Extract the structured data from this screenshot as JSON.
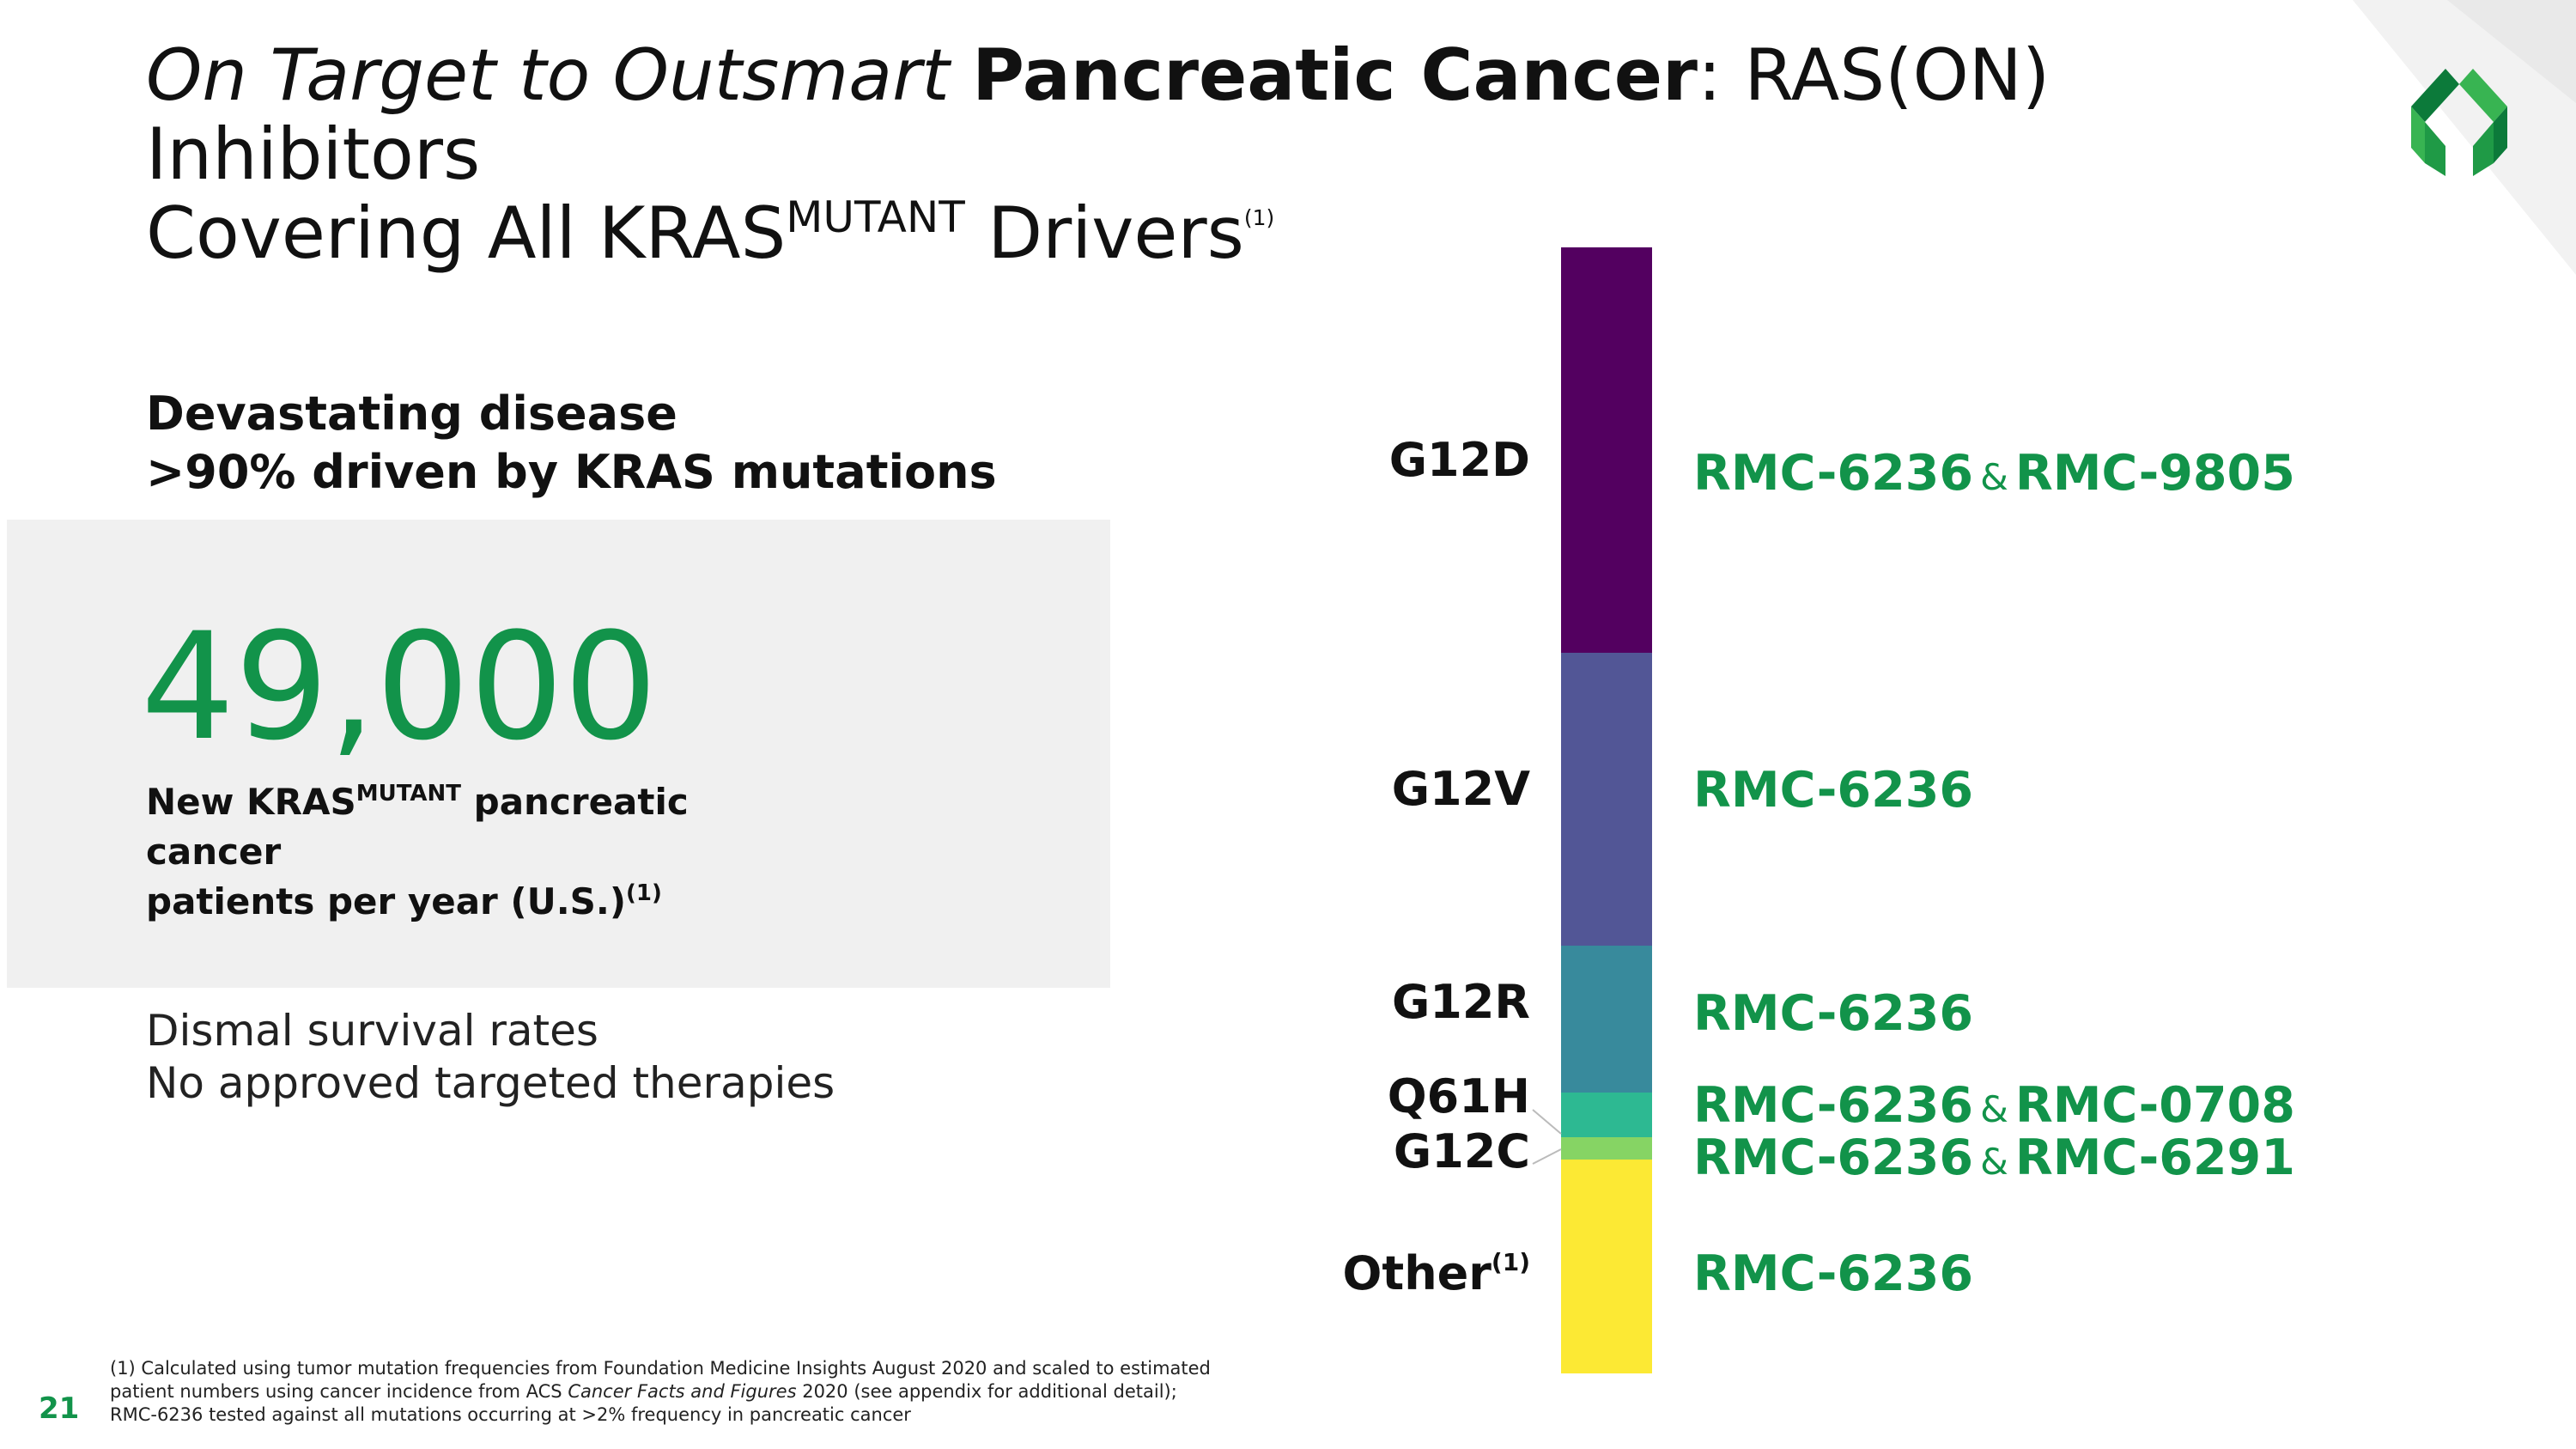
{
  "title": {
    "italic": "On Target to Outsmart",
    "bold": "Pancreatic Cancer",
    "rest_line1": ": RAS(ON) Inhibitors",
    "line2_prefix": "Covering All KRAS",
    "line2_sup": "MUTANT",
    "line2_suffix": " Drivers",
    "footnote_ref": "(1)"
  },
  "headline": {
    "line1": "Devastating disease",
    "line2": ">90% driven by KRAS mutations"
  },
  "stat": {
    "number": "49,000",
    "desc_prefix": "New KRAS",
    "desc_sup": "MUTANT",
    "desc_line1_suffix": " pancreatic",
    "desc_line2": "cancer",
    "desc_line3": "patients per year (U.S.)",
    "desc_ref": "(1)"
  },
  "bullets": {
    "line1": "Dismal survival rates",
    "line2": "No approved targeted therapies"
  },
  "bar_segments": [
    {
      "mutation": "G12D",
      "share": 0.36,
      "color": "#530060"
    },
    {
      "mutation": "G12V",
      "share": 0.26,
      "color": "#525696"
    },
    {
      "mutation": "G12R",
      "share": 0.13,
      "color": "#388a9c"
    },
    {
      "mutation": "Q61H",
      "share": 0.04,
      "color": "#2db992"
    },
    {
      "mutation": "G12C",
      "share": 0.02,
      "color": "#86d464"
    },
    {
      "mutation": "Other",
      "share": 0.19,
      "color": "#fce934"
    }
  ],
  "mutations": {
    "g12d": "G12D",
    "g12v": "G12V",
    "g12r": "G12R",
    "q61h": "Q61H",
    "g12c": "G12C",
    "other": "Other",
    "other_ref": "(1)"
  },
  "drugs": {
    "g12d_a": "RMC-6236",
    "g12d_b": "RMC-9805",
    "g12v": "RMC-6236",
    "g12r": "RMC-6236",
    "q61h_a": "RMC-6236",
    "q61h_b": "RMC-0708",
    "g12c_a": "RMC-6236",
    "g12c_b": "RMC-6291",
    "other": "RMC-6236",
    "amp": "&"
  },
  "footer": {
    "page_number": "21",
    "fn_line1": "(1) Calculated using tumor mutation frequencies from Foundation Medicine Insights August 2020 and scaled to estimated",
    "fn_line2_a": "patient numbers using cancer incidence from ACS ",
    "fn_line2_italic": "Cancer Facts and Figures",
    "fn_line2_b": " 2020 (see appendix for additional detail);",
    "fn_line3": "RMC-6236 tested against all mutations occurring at >2% frequency in pancreatic cancer"
  },
  "colors": {
    "accent_green": "#12934a",
    "stat_box_bg": "#f0f0f0",
    "logo_dark": "#0c7a3a",
    "logo_light": "#38b452"
  },
  "icons": {
    "logo": "company-logo-icon"
  }
}
